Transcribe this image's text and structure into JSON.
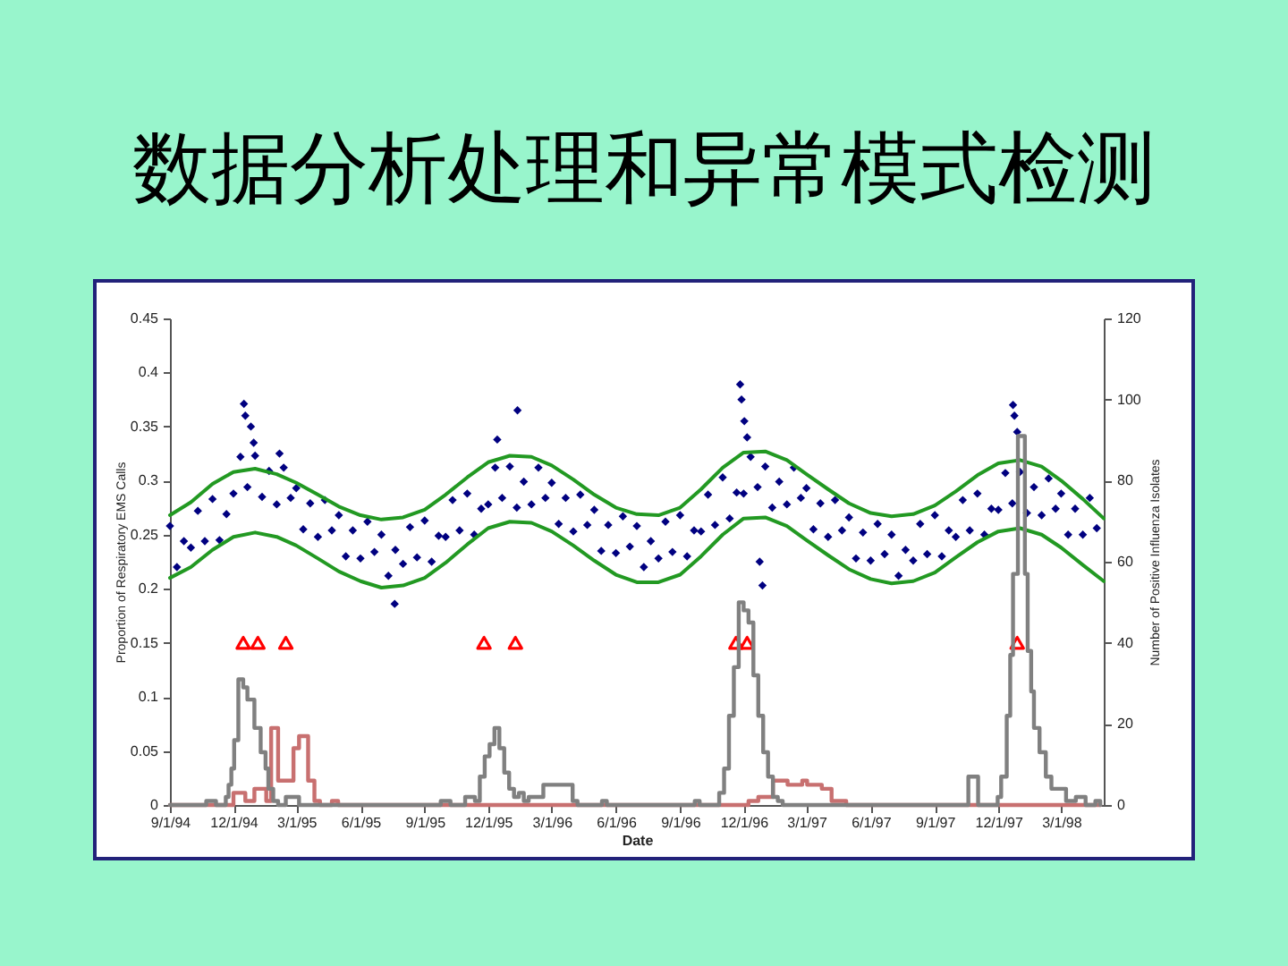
{
  "chart_data": {
    "type": "scatter",
    "title": "数据分析处理和异常模式检测",
    "xlabel": "Date",
    "ylabel": "Proportion of Respiratory EMS Calls",
    "y2label": "Number of Positive Influenza Isolates",
    "xlim": [
      "1994-09-01",
      "1998-05-01"
    ],
    "xticks": [
      {
        "value": "1994-09-01",
        "label": "9/1/94"
      },
      {
        "value": "1994-12-01",
        "label": "12/1/94"
      },
      {
        "value": "1995-03-01",
        "label": "3/1/95"
      },
      {
        "value": "1995-06-01",
        "label": "6/1/95"
      },
      {
        "value": "1995-09-01",
        "label": "9/1/95"
      },
      {
        "value": "1995-12-01",
        "label": "12/1/95"
      },
      {
        "value": "1996-03-01",
        "label": "3/1/96"
      },
      {
        "value": "1996-06-01",
        "label": "6/1/96"
      },
      {
        "value": "1996-09-01",
        "label": "9/1/96"
      },
      {
        "value": "1996-12-01",
        "label": "12/1/96"
      },
      {
        "value": "1997-03-01",
        "label": "3/1/97"
      },
      {
        "value": "1997-06-01",
        "label": "6/1/97"
      },
      {
        "value": "1997-09-01",
        "label": "9/1/97"
      },
      {
        "value": "1997-12-01",
        "label": "12/1/97"
      },
      {
        "value": "1998-03-01",
        "label": "3/1/98"
      }
    ],
    "ylim": [
      0,
      0.45
    ],
    "yticks": [
      0,
      0.05,
      0.1,
      0.15,
      0.2,
      0.25,
      0.3,
      0.35,
      0.4,
      0.45
    ],
    "y2lim": [
      0,
      120
    ],
    "y2ticks": [
      0,
      20,
      40,
      60,
      80,
      100,
      120
    ],
    "series": [
      {
        "marker": "diamond",
        "color": "#000080",
        "x": [
          "1994-09-01",
          "1994-09-11",
          "1994-09-21",
          "1994-10-01",
          "1994-10-11",
          "1994-10-21",
          "1994-11-01",
          "1994-11-11",
          "1994-11-21",
          "1994-12-01",
          "1994-12-11",
          "1994-12-16",
          "1994-12-18",
          "1994-12-21",
          "1994-12-26",
          "1994-12-30",
          "1995-01-01",
          "1995-01-11",
          "1995-01-21",
          "1995-02-01",
          "1995-02-05",
          "1995-02-11",
          "1995-02-21",
          "1995-03-01",
          "1995-03-11",
          "1995-03-21",
          "1995-04-01",
          "1995-04-11",
          "1995-04-21",
          "1995-05-01",
          "1995-05-11",
          "1995-05-21",
          "1995-06-01",
          "1995-06-11",
          "1995-06-21",
          "1995-07-01",
          "1995-07-11",
          "1995-07-20",
          "1995-07-21",
          "1995-08-01",
          "1995-08-11",
          "1995-08-21",
          "1995-09-01",
          "1995-09-11",
          "1995-09-21",
          "1995-10-01",
          "1995-10-11",
          "1995-10-21",
          "1995-11-01",
          "1995-11-11",
          "1995-11-21",
          "1995-12-01",
          "1995-12-11",
          "1995-12-14",
          "1995-12-21",
          "1996-01-01",
          "1996-01-11",
          "1996-01-12",
          "1996-01-21",
          "1996-02-01",
          "1996-02-11",
          "1996-02-21",
          "1996-03-01",
          "1996-03-11",
          "1996-03-21",
          "1996-04-01",
          "1996-04-11",
          "1996-04-21",
          "1996-05-01",
          "1996-05-11",
          "1996-05-21",
          "1996-06-01",
          "1996-06-11",
          "1996-06-21",
          "1996-07-01",
          "1996-07-11",
          "1996-07-21",
          "1996-08-01",
          "1996-08-11",
          "1996-08-21",
          "1996-09-01",
          "1996-09-11",
          "1996-09-21",
          "1996-10-01",
          "1996-10-11",
          "1996-10-21",
          "1996-11-01",
          "1996-11-11",
          "1996-11-21",
          "1996-11-26",
          "1996-11-28",
          "1996-12-01",
          "1996-12-02",
          "1996-12-06",
          "1996-12-11",
          "1996-12-21",
          "1996-12-24",
          "1996-12-28",
          "1997-01-01",
          "1997-01-11",
          "1997-01-21",
          "1997-02-01",
          "1997-02-11",
          "1997-02-21",
          "1997-03-01",
          "1997-03-11",
          "1997-03-21",
          "1997-04-01",
          "1997-04-11",
          "1997-04-21",
          "1997-05-01",
          "1997-05-11",
          "1997-05-21",
          "1997-06-01",
          "1997-06-11",
          "1997-06-21",
          "1997-07-01",
          "1997-07-11",
          "1997-07-21",
          "1997-08-01",
          "1997-08-11",
          "1997-08-21",
          "1997-09-01",
          "1997-09-11",
          "1997-09-21",
          "1997-10-01",
          "1997-10-11",
          "1997-10-21",
          "1997-11-01",
          "1997-11-11",
          "1997-11-21",
          "1997-12-01",
          "1997-12-11",
          "1997-12-21",
          "1997-12-22",
          "1997-12-24",
          "1997-12-28",
          "1998-01-01",
          "1998-01-11",
          "1998-01-21",
          "1998-02-01",
          "1998-02-11",
          "1998-02-21",
          "1998-03-01",
          "1998-03-11",
          "1998-03-21",
          "1998-04-01",
          "1998-04-11",
          "1998-04-21"
        ],
        "values": [
          0.258,
          0.22,
          0.244,
          0.238,
          0.272,
          0.244,
          0.283,
          0.245,
          0.269,
          0.288,
          0.322,
          0.371,
          0.36,
          0.294,
          0.35,
          0.335,
          0.323,
          0.285,
          0.309,
          0.278,
          0.325,
          0.312,
          0.284,
          0.293,
          0.255,
          0.279,
          0.248,
          0.282,
          0.254,
          0.268,
          0.23,
          0.254,
          0.228,
          0.262,
          0.234,
          0.25,
          0.212,
          0.186,
          0.236,
          0.223,
          0.257,
          0.229,
          0.263,
          0.225,
          0.249,
          0.248,
          0.282,
          0.254,
          0.288,
          0.25,
          0.274,
          0.278,
          0.312,
          0.338,
          0.284,
          0.313,
          0.275,
          0.365,
          0.299,
          0.278,
          0.312,
          0.284,
          0.298,
          0.26,
          0.284,
          0.253,
          0.287,
          0.259,
          0.273,
          0.235,
          0.259,
          0.233,
          0.267,
          0.239,
          0.258,
          0.22,
          0.244,
          0.228,
          0.262,
          0.234,
          0.268,
          0.23,
          0.254,
          0.253,
          0.287,
          0.259,
          0.303,
          0.265,
          0.289,
          0.389,
          0.375,
          0.288,
          0.355,
          0.34,
          0.322,
          0.294,
          0.225,
          0.203,
          0.313,
          0.275,
          0.299,
          0.278,
          0.312,
          0.284,
          0.293,
          0.255,
          0.279,
          0.248,
          0.282,
          0.254,
          0.266,
          0.228,
          0.252,
          0.226,
          0.26,
          0.232,
          0.25,
          0.212,
          0.236,
          0.226,
          0.26,
          0.232,
          0.268,
          0.23,
          0.254,
          0.248,
          0.282,
          0.254,
          0.288,
          0.25,
          0.274,
          0.273,
          0.307,
          0.279,
          0.37,
          0.36,
          0.345,
          0.308,
          0.27,
          0.294,
          0.268,
          0.302,
          0.274,
          0.288,
          0.25,
          0.274,
          0.25,
          0.284,
          0.256
        ]
      },
      {
        "type": "line",
        "color": "#229922",
        "x": [
          "1994-09-01",
          "1994-10-01",
          "1994-11-01",
          "1994-12-01",
          "1995-01-01",
          "1995-02-01",
          "1995-03-01",
          "1995-04-01",
          "1995-05-01",
          "1995-06-01",
          "1995-07-01",
          "1995-08-01",
          "1995-09-01",
          "1995-10-01",
          "1995-11-01",
          "1995-12-01",
          "1996-01-01",
          "1996-02-01",
          "1996-03-01",
          "1996-04-01",
          "1996-05-01",
          "1996-06-01",
          "1996-07-01",
          "1996-08-01",
          "1996-09-01",
          "1996-10-01",
          "1996-11-01",
          "1996-12-01",
          "1997-01-01",
          "1997-02-01",
          "1997-03-01",
          "1997-04-01",
          "1997-05-01",
          "1997-06-01",
          "1997-07-01",
          "1997-08-01",
          "1997-09-01",
          "1997-10-01",
          "1997-11-01",
          "1997-12-01",
          "1998-01-01",
          "1998-02-01",
          "1998-03-01",
          "1998-04-01",
          "1998-05-01"
        ],
        "values": [
          0.268,
          0.28,
          0.297,
          0.308,
          0.311,
          0.306,
          0.298,
          0.287,
          0.276,
          0.268,
          0.264,
          0.266,
          0.273,
          0.287,
          0.303,
          0.317,
          0.323,
          0.322,
          0.314,
          0.301,
          0.287,
          0.275,
          0.269,
          0.268,
          0.275,
          0.292,
          0.312,
          0.326,
          0.327,
          0.319,
          0.306,
          0.292,
          0.279,
          0.27,
          0.267,
          0.269,
          0.277,
          0.29,
          0.305,
          0.316,
          0.319,
          0.313,
          0.3,
          0.283,
          0.265
        ]
      },
      {
        "type": "line",
        "color": "#229922",
        "x": [
          "1994-09-01",
          "1994-10-01",
          "1994-11-01",
          "1994-12-01",
          "1995-01-01",
          "1995-02-01",
          "1995-03-01",
          "1995-04-01",
          "1995-05-01",
          "1995-06-01",
          "1995-07-01",
          "1995-08-01",
          "1995-09-01",
          "1995-10-01",
          "1995-11-01",
          "1995-12-01",
          "1996-01-01",
          "1996-02-01",
          "1996-03-01",
          "1996-04-01",
          "1996-05-01",
          "1996-06-01",
          "1996-07-01",
          "1996-08-01",
          "1996-09-01",
          "1996-10-01",
          "1996-11-01",
          "1996-12-01",
          "1997-01-01",
          "1997-02-01",
          "1997-03-01",
          "1997-04-01",
          "1997-05-01",
          "1997-06-01",
          "1997-07-01",
          "1997-08-01",
          "1997-09-01",
          "1997-10-01",
          "1997-11-01",
          "1997-12-01",
          "1998-01-01",
          "1998-02-01",
          "1998-03-01",
          "1998-04-01",
          "1998-05-01"
        ],
        "values": [
          0.21,
          0.22,
          0.236,
          0.248,
          0.252,
          0.248,
          0.24,
          0.228,
          0.216,
          0.207,
          0.201,
          0.203,
          0.21,
          0.224,
          0.241,
          0.256,
          0.262,
          0.261,
          0.253,
          0.24,
          0.226,
          0.213,
          0.206,
          0.206,
          0.213,
          0.23,
          0.25,
          0.265,
          0.266,
          0.258,
          0.245,
          0.231,
          0.218,
          0.209,
          0.205,
          0.207,
          0.215,
          0.229,
          0.243,
          0.253,
          0.256,
          0.25,
          0.238,
          0.222,
          0.207
        ]
      },
      {
        "marker": "triangle",
        "color": "#ff0000",
        "x": [
          "1994-12-15",
          "1995-01-05",
          "1995-02-14",
          "1995-11-25",
          "1996-01-09",
          "1996-11-20",
          "1996-12-06",
          "1997-12-28"
        ],
        "values": [
          0.15,
          0.15,
          0.15,
          0.15,
          0.15,
          0.15,
          0.15,
          0.15
        ]
      },
      {
        "type": "step",
        "axis": "y2",
        "color": "#c87070",
        "x": [
          "1994-09-01",
          "1994-12-01",
          "1994-12-18",
          "1994-12-31",
          "1995-01-17",
          "1995-01-24",
          "1995-02-03",
          "1995-02-25",
          "1995-03-05",
          "1995-03-18",
          "1995-03-27",
          "1995-04-04",
          "1995-04-21",
          "1995-04-30",
          "1996-12-08",
          "1996-12-22",
          "1997-01-12",
          "1997-02-02",
          "1997-02-23",
          "1997-03-02",
          "1997-03-23",
          "1997-04-06",
          "1997-04-27",
          "1998-04-26"
        ],
        "values": [
          0,
          3,
          1,
          4,
          1,
          19,
          6,
          14,
          17,
          6,
          1,
          0,
          1,
          0,
          1,
          2,
          6,
          5,
          6,
          5,
          4,
          1,
          0,
          0
        ]
      },
      {
        "type": "step",
        "axis": "y2",
        "color": "#808080",
        "x": [
          "1994-09-01",
          "1994-10-23",
          "1994-11-06",
          "1994-11-20",
          "1994-11-24",
          "1994-11-28",
          "1994-12-02",
          "1994-12-08",
          "1994-12-15",
          "1994-12-21",
          "1994-12-31",
          "1995-01-09",
          "1995-01-16",
          "1995-01-20",
          "1995-01-27",
          "1995-02-03",
          "1995-02-14",
          "1995-03-05",
          "1995-09-24",
          "1995-10-08",
          "1995-10-29",
          "1995-11-12",
          "1995-11-19",
          "1995-11-26",
          "1995-12-03",
          "1995-12-10",
          "1995-12-17",
          "1995-12-24",
          "1995-12-31",
          "1996-01-07",
          "1996-01-14",
          "1996-01-21",
          "1996-01-28",
          "1996-02-18",
          "1996-03-31",
          "1996-04-07",
          "1996-05-12",
          "1996-05-19",
          "1996-09-22",
          "1996-09-29",
          "1996-10-27",
          "1996-11-03",
          "1996-11-10",
          "1996-11-17",
          "1996-11-24",
          "1996-12-01",
          "1996-12-08",
          "1996-12-15",
          "1996-12-22",
          "1996-12-29",
          "1997-01-05",
          "1997-01-12",
          "1997-01-19",
          "1997-01-26",
          "1997-10-19",
          "1997-11-02",
          "1997-11-30",
          "1997-12-05",
          "1997-12-13",
          "1997-12-18",
          "1997-12-22",
          "1997-12-29",
          "1998-01-08",
          "1998-01-12",
          "1998-01-17",
          "1998-01-21",
          "1998-01-29",
          "1998-02-07",
          "1998-02-15",
          "1998-03-08",
          "1998-03-22",
          "1998-04-05",
          "1998-04-19",
          "1998-04-26"
        ],
        "values": [
          0,
          1,
          0,
          2,
          5,
          9,
          16,
          31,
          29,
          26,
          19,
          13,
          9,
          4,
          1,
          0,
          2,
          0,
          1,
          0,
          2,
          1,
          7,
          12,
          15,
          19,
          14,
          8,
          4,
          2,
          3,
          1,
          2,
          5,
          1,
          0,
          1,
          0,
          1,
          0,
          3,
          9,
          22,
          34,
          50,
          48,
          45,
          32,
          22,
          13,
          7,
          2,
          1,
          0,
          7,
          0,
          2,
          7,
          22,
          37,
          57,
          91,
          57,
          38,
          28,
          19,
          13,
          7,
          4,
          1,
          2,
          0,
          1,
          0
        ]
      }
    ]
  }
}
